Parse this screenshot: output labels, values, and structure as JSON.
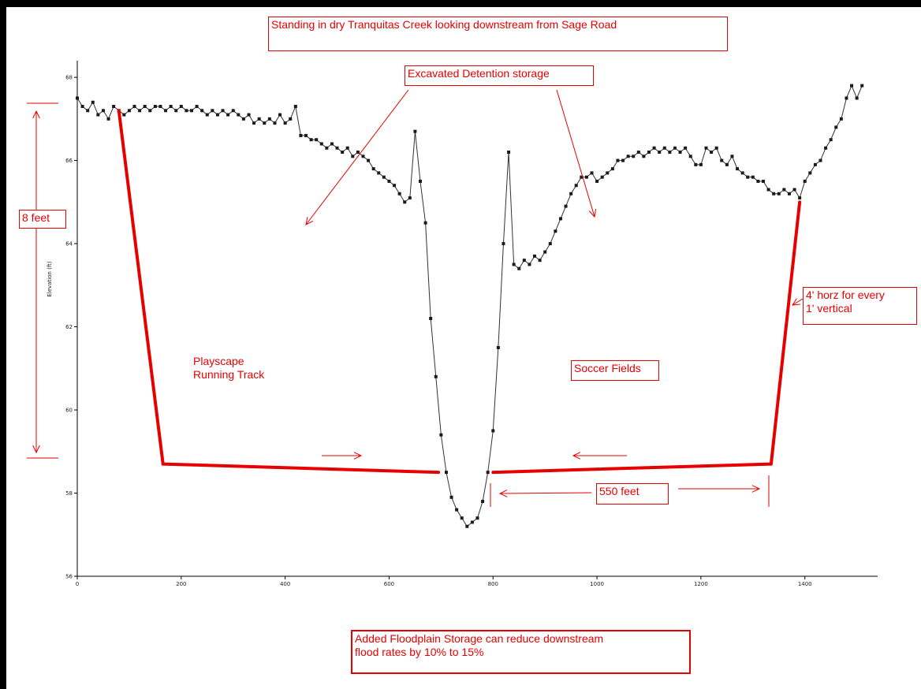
{
  "page_title": "Standing in dry Tranquitas Creek looking downstream from Sage Road",
  "annotations": {
    "excavated": "Excavated Detention storage",
    "eight_feet": "8 feet",
    "slope": "4' horz for every\n1' vertical",
    "playscape": "Playscape\nRunning Track",
    "soccer": "Soccer Fields",
    "distance": "550 feet",
    "footer": "Added Floodplain Storage can reduce downstream\nflood rates by 10% to 15%"
  },
  "colors": {
    "annotation": "#e60000",
    "profile": "#333333",
    "marker": "#1a1a1a",
    "axis": "#000000"
  },
  "chart_data": {
    "type": "line",
    "title": "",
    "xlabel": "",
    "ylabel": "Elevation (ft)",
    "xlim": [
      0,
      1540
    ],
    "ylim": [
      56,
      68.4
    ],
    "x_ticks": [
      0,
      200,
      400,
      600,
      800,
      1000,
      1200,
      1400
    ],
    "y_ticks": [
      56,
      58,
      60,
      62,
      64,
      66,
      68
    ],
    "grid": false,
    "series": [
      {
        "x": [
          0,
          10,
          20,
          30,
          40,
          50,
          60,
          70,
          80,
          90,
          100,
          110,
          120,
          130,
          140,
          150,
          160,
          170,
          180,
          190,
          200,
          210,
          220,
          230,
          240,
          250,
          260,
          270,
          280,
          290,
          300,
          310,
          320,
          330,
          340,
          350,
          360,
          370,
          380,
          390,
          400,
          410,
          420,
          430,
          440,
          450,
          460,
          470,
          480,
          490,
          500,
          510,
          520,
          530,
          540,
          550,
          560,
          570,
          580,
          590,
          600,
          610,
          620,
          630,
          640,
          650,
          660,
          670,
          680,
          690,
          700,
          710,
          720,
          730,
          740,
          750,
          760,
          770,
          780,
          790,
          800,
          810,
          820,
          830,
          840,
          850,
          860,
          870,
          880,
          890,
          900,
          910,
          920,
          930,
          940,
          950,
          960,
          970,
          980,
          990,
          1000,
          1010,
          1020,
          1030,
          1040,
          1050,
          1060,
          1070,
          1080,
          1090,
          1100,
          1110,
          1120,
          1130,
          1140,
          1150,
          1160,
          1170,
          1180,
          1190,
          1200,
          1210,
          1220,
          1230,
          1240,
          1250,
          1260,
          1270,
          1280,
          1290,
          1300,
          1310,
          1320,
          1330,
          1340,
          1350,
          1360,
          1370,
          1380,
          1390,
          1400,
          1410,
          1420,
          1430,
          1440,
          1450,
          1460,
          1470,
          1480,
          1490,
          1500,
          1510
        ],
        "y": [
          67.5,
          67.3,
          67.2,
          67.4,
          67.1,
          67.2,
          67.0,
          67.3,
          67.2,
          67.1,
          67.2,
          67.3,
          67.2,
          67.3,
          67.2,
          67.3,
          67.3,
          67.2,
          67.3,
          67.2,
          67.3,
          67.2,
          67.2,
          67.3,
          67.2,
          67.1,
          67.2,
          67.1,
          67.2,
          67.1,
          67.2,
          67.1,
          67.0,
          67.1,
          66.9,
          67.0,
          66.9,
          67.0,
          66.9,
          67.1,
          66.9,
          67.0,
          67.3,
          66.6,
          66.6,
          66.5,
          66.5,
          66.4,
          66.3,
          66.4,
          66.3,
          66.2,
          66.3,
          66.1,
          66.2,
          66.1,
          66.0,
          65.8,
          65.7,
          65.6,
          65.5,
          65.4,
          65.2,
          65.0,
          65.1,
          66.7,
          65.5,
          64.5,
          62.2,
          60.8,
          59.4,
          58.5,
          57.9,
          57.6,
          57.4,
          57.2,
          57.3,
          57.4,
          57.8,
          58.5,
          59.5,
          61.5,
          64.0,
          66.2,
          63.5,
          63.4,
          63.6,
          63.5,
          63.7,
          63.6,
          63.8,
          64.0,
          64.3,
          64.6,
          64.9,
          65.2,
          65.4,
          65.6,
          65.6,
          65.7,
          65.5,
          65.6,
          65.7,
          65.8,
          66.0,
          66.0,
          66.1,
          66.1,
          66.2,
          66.1,
          66.2,
          66.3,
          66.2,
          66.3,
          66.2,
          66.3,
          66.2,
          66.3,
          66.1,
          65.9,
          65.9,
          66.3,
          66.2,
          66.3,
          66.0,
          65.9,
          66.1,
          65.8,
          65.7,
          65.6,
          65.6,
          65.5,
          65.5,
          65.3,
          65.2,
          65.2,
          65.3,
          65.2,
          65.3,
          65.1,
          65.5,
          65.7,
          65.9,
          66.0,
          66.3,
          66.5,
          66.8,
          67.0,
          67.5,
          67.8,
          67.5,
          67.8
        ]
      }
    ],
    "proposed_section": {
      "x": [
        80,
        165,
        695,
        800,
        1335,
        1390
      ],
      "y": [
        67.2,
        58.7,
        58.5,
        58.5,
        58.7,
        65.0
      ]
    }
  }
}
